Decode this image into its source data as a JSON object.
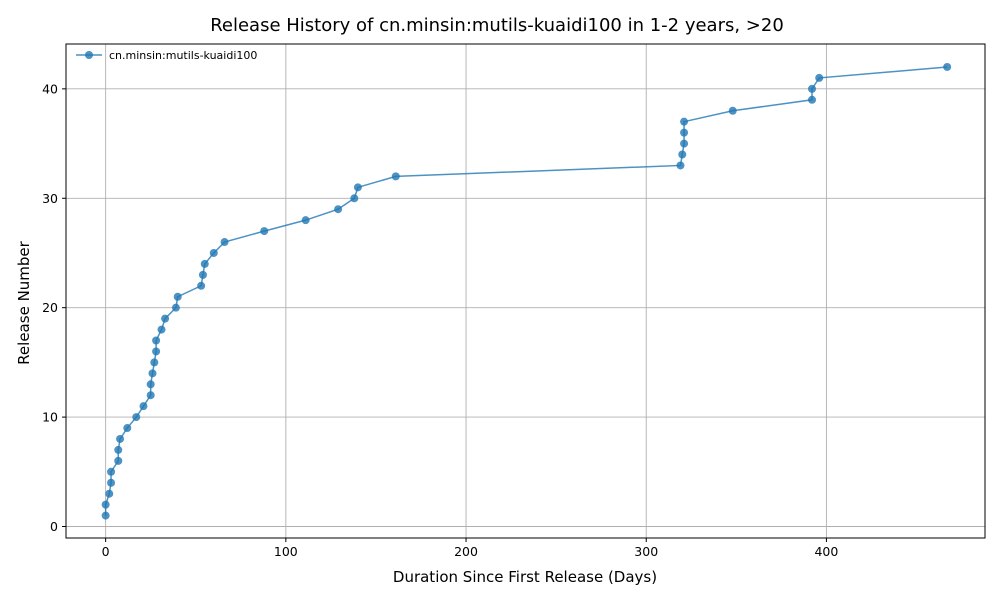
{
  "chart_data": {
    "type": "line",
    "title": "Release History of cn.minsin:mutils-kuaidi100 in 1-2 years, >20",
    "xlabel": "Duration Since First Release (Days)",
    "ylabel": "Release Number",
    "xlim": [
      -22,
      488
    ],
    "ylim": [
      -1.05,
      44.1
    ],
    "xticks": [
      0,
      100,
      200,
      300,
      400
    ],
    "yticks": [
      0,
      10,
      20,
      30,
      40
    ],
    "grid": true,
    "legend_position": "top-left",
    "series": [
      {
        "name": "cn.minsin:mutils-kuaidi100",
        "color": "#1f77b4",
        "marker": "circle",
        "x": [
          0,
          0,
          2,
          3,
          3,
          7,
          7,
          8,
          12,
          17,
          21,
          25,
          25,
          26,
          27,
          28,
          28,
          31,
          33,
          39,
          40,
          53,
          54,
          55,
          60,
          66,
          88,
          111,
          129,
          138,
          140,
          161,
          319,
          320,
          321,
          321,
          321,
          348,
          392,
          392,
          396,
          467
        ],
        "y": [
          1,
          2,
          3,
          4,
          5,
          6,
          7,
          8,
          9,
          10,
          11,
          12,
          13,
          14,
          15,
          16,
          17,
          18,
          19,
          20,
          21,
          22,
          23,
          24,
          25,
          26,
          27,
          28,
          29,
          30,
          31,
          32,
          33,
          34,
          35,
          36,
          37,
          38,
          39,
          40,
          41,
          42
        ]
      }
    ]
  }
}
